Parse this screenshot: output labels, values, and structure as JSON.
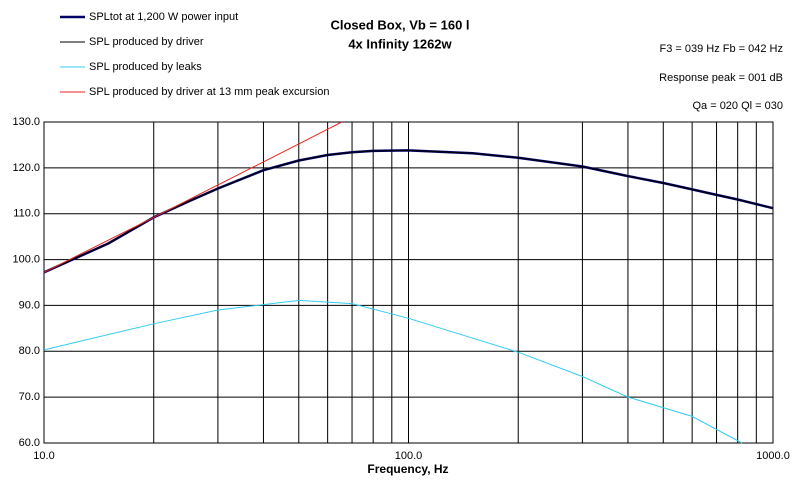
{
  "chart_data": {
    "type": "line",
    "title": "Closed Box, Vb = 160 l",
    "subtitle": "4x Infinity 1262w",
    "xlabel": "Frequency, Hz",
    "annotations": [
      "F3 = 039 Hz  Fb = 042 Hz",
      "Response peak = 001 dB",
      "Qa = 020  Ql = 030"
    ],
    "log_x": true,
    "grid": true,
    "xlim": [
      10,
      1000
    ],
    "ylim": [
      60,
      130
    ],
    "xticks": [
      {
        "value": 10,
        "label": "10.0"
      },
      {
        "value": 100,
        "label": "100.0"
      },
      {
        "value": 1000,
        "label": "1000.0"
      }
    ],
    "xminor": [
      20,
      30,
      40,
      50,
      60,
      70,
      80,
      90,
      200,
      300,
      400,
      500,
      600,
      700,
      800,
      900
    ],
    "yticks": [
      {
        "value": 60,
        "label": "60.0"
      },
      {
        "value": 70,
        "label": "70.0"
      },
      {
        "value": 80,
        "label": "80.0"
      },
      {
        "value": 90,
        "label": "90.0"
      },
      {
        "value": 100,
        "label": "100.0"
      },
      {
        "value": 110,
        "label": "110.0"
      },
      {
        "value": 120,
        "label": "120.0"
      },
      {
        "value": 130,
        "label": "130.0"
      }
    ],
    "series": [
      {
        "name": "SPLtot at 1,200 W power input",
        "color": "#000066",
        "width": 2.5,
        "x": [
          10,
          15,
          20,
          25,
          30,
          40,
          50,
          60,
          70,
          80,
          100,
          150,
          200,
          300,
          400,
          500,
          600,
          700,
          800,
          1000
        ],
        "values": [
          97.2,
          103.5,
          109.2,
          112.7,
          115.5,
          119.5,
          121.6,
          122.8,
          123.4,
          123.7,
          123.8,
          123.2,
          122.2,
          120.3,
          118.2,
          116.7,
          115.3,
          114.1,
          113.1,
          111.2
        ]
      },
      {
        "name": "SPL produced by driver",
        "color": "#000000",
        "width": 1,
        "x": [
          10,
          15,
          20,
          25,
          30,
          40,
          50,
          60,
          70,
          80,
          100,
          150,
          200,
          300,
          400,
          500,
          600,
          700,
          800,
          1000
        ],
        "values": [
          97.2,
          103.5,
          109.2,
          112.7,
          115.5,
          119.5,
          121.6,
          122.8,
          123.4,
          123.7,
          123.8,
          123.2,
          122.2,
          120.3,
          118.2,
          116.7,
          115.3,
          114.1,
          113.1,
          111.2
        ]
      },
      {
        "name": "SPL produced by leaks",
        "color": "#33ccee",
        "width": 1,
        "x": [
          10,
          20,
          30,
          50,
          70,
          100,
          200,
          300,
          400,
          600,
          822
        ],
        "values": [
          80.3,
          86.0,
          89.0,
          91.1,
          90.4,
          87.2,
          79.8,
          74.5,
          70.0,
          65.8,
          60.0
        ]
      },
      {
        "name": "SPL produced by driver at 13 mm peak excursion",
        "color": "#ee2222",
        "width": 1,
        "x": [
          10,
          20,
          40,
          65.6
        ],
        "values": [
          97.2,
          109.2,
          121.3,
          130.0
        ]
      }
    ]
  }
}
